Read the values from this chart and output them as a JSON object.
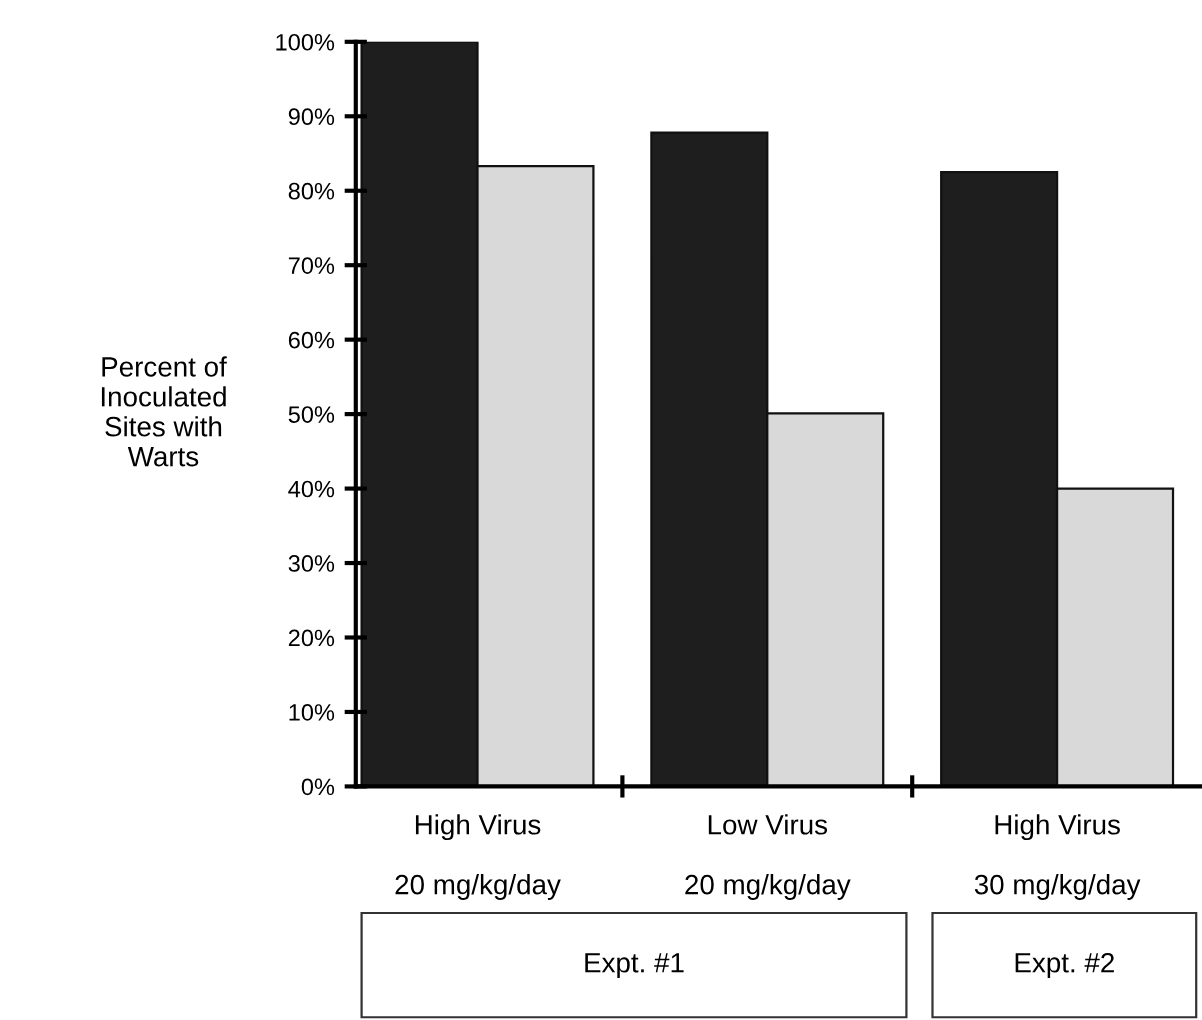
{
  "chart_data": {
    "type": "bar",
    "ylabel": "Percent of\nInoculated\nSites with\nWarts",
    "categories": [
      "High Virus\n\n20 mg/kg/day",
      "Low Virus\n\n20 mg/kg/day",
      "High Virus\n\n30 mg/kg/day"
    ],
    "series": [
      {
        "color": "#1e1e1e",
        "values": [
          100,
          87.8,
          82.5
        ]
      },
      {
        "color": "#d9d9d9",
        "values": [
          83.3,
          50.1,
          40.0
        ]
      }
    ],
    "ylim": [
      0,
      100
    ],
    "yticks": [
      {
        "value": 0,
        "label": "0%"
      },
      {
        "value": 10,
        "label": "10%"
      },
      {
        "value": 20,
        "label": "20%"
      },
      {
        "value": 30,
        "label": "30%"
      },
      {
        "value": 40,
        "label": "40%"
      },
      {
        "value": 50,
        "label": "50%"
      },
      {
        "value": 60,
        "label": "60%"
      },
      {
        "value": 70,
        "label": "70%"
      },
      {
        "value": 80,
        "label": "80%"
      },
      {
        "value": 90,
        "label": "90%"
      },
      {
        "value": 100,
        "label": "100%"
      }
    ],
    "annotations": [
      "Expt. #1",
      "Expt. #2"
    ],
    "grid": false
  }
}
